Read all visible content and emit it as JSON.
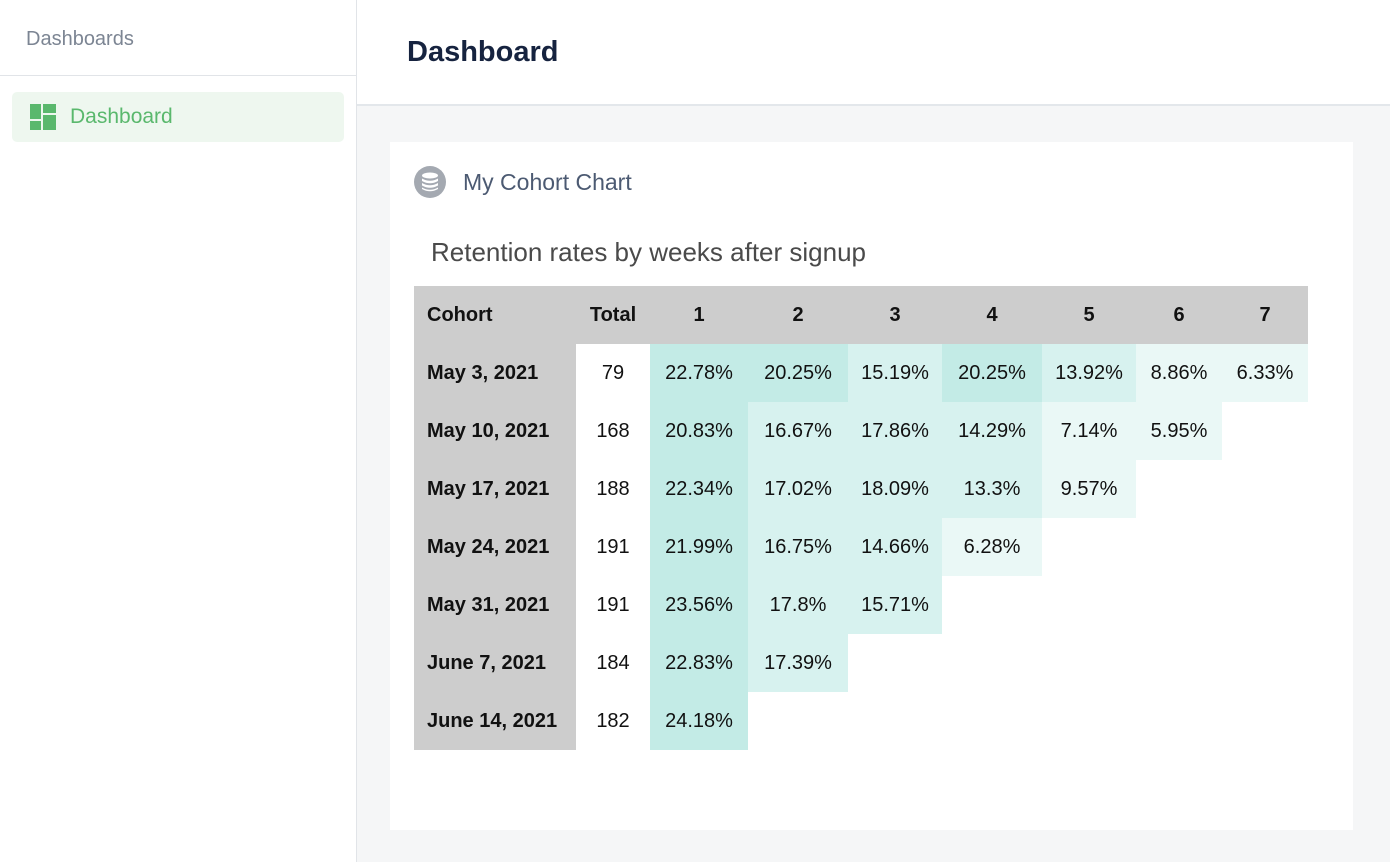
{
  "sidebar": {
    "header": "Dashboards",
    "items": [
      {
        "label": "Dashboard",
        "icon": "dashboard-icon",
        "active": true,
        "color": "#5ab86d"
      }
    ]
  },
  "header": {
    "title": "Dashboard"
  },
  "card": {
    "icon": "database-icon",
    "title": "My Cohort Chart",
    "chart_title": "Retention rates by weeks after signup"
  },
  "table": {
    "columns": [
      "Cohort",
      "Total",
      "1",
      "2",
      "3",
      "4",
      "5",
      "6",
      "7"
    ],
    "rows": [
      {
        "cohort": "May 3, 2021",
        "total": "79",
        "values": [
          "22.78%",
          "20.25%",
          "15.19%",
          "20.25%",
          "13.92%",
          "8.86%",
          "6.33%"
        ]
      },
      {
        "cohort": "May 10, 2021",
        "total": "168",
        "values": [
          "20.83%",
          "16.67%",
          "17.86%",
          "14.29%",
          "7.14%",
          "5.95%"
        ]
      },
      {
        "cohort": "May 17, 2021",
        "total": "188",
        "values": [
          "22.34%",
          "17.02%",
          "18.09%",
          "13.3%",
          "9.57%"
        ]
      },
      {
        "cohort": "May 24, 2021",
        "total": "191",
        "values": [
          "21.99%",
          "16.75%",
          "14.66%",
          "6.28%"
        ]
      },
      {
        "cohort": "May 31, 2021",
        "total": "191",
        "values": [
          "23.56%",
          "17.8%",
          "15.71%"
        ]
      },
      {
        "cohort": "June 7, 2021",
        "total": "184",
        "values": [
          "22.83%",
          "17.39%"
        ]
      },
      {
        "cohort": "June 14, 2021",
        "total": "182",
        "values": [
          "24.18%"
        ]
      }
    ]
  },
  "colors": {
    "header_bg": "#cdcdcd",
    "heat_strong": "#c3ebe6",
    "heat_medium": "#d7f2ef",
    "heat_light": "#eaf8f6",
    "accent": "#5ab86d"
  }
}
